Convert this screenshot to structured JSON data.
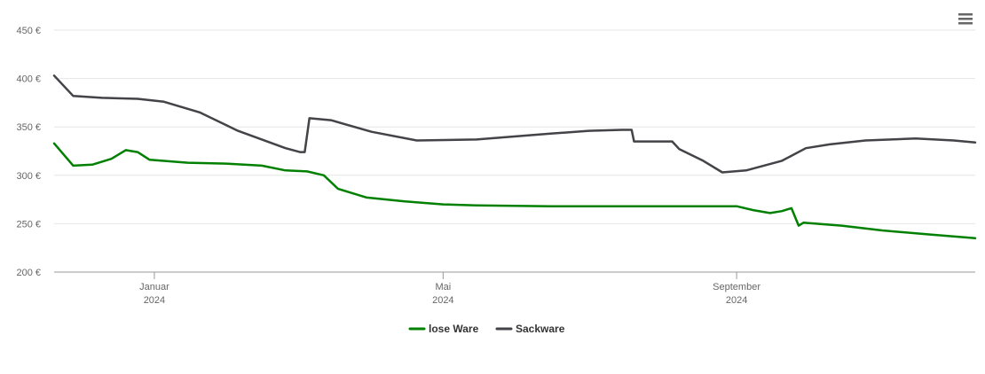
{
  "chart_data": {
    "type": "line",
    "title": "",
    "xlabel": "",
    "ylabel": "",
    "x_range": [
      "2023-11-20",
      "2024-12-10"
    ],
    "ylim": [
      200,
      450
    ],
    "y_ticks": [
      200,
      250,
      300,
      350,
      400,
      450
    ],
    "y_tick_labels": [
      "200 €",
      "250 €",
      "300 €",
      "350 €",
      "400 €",
      "450 €"
    ],
    "x_ticks": [
      {
        "date": "2024-01-01",
        "label": "Januar",
        "year": "2024"
      },
      {
        "date": "2024-05-01",
        "label": "Mai",
        "year": "2024"
      },
      {
        "date": "2024-09-01",
        "label": "September",
        "year": "2024"
      }
    ],
    "grid": true,
    "legend_position": "bottom-center",
    "series": [
      {
        "name": "lose Ware",
        "color": "#008000",
        "points": [
          [
            "2023-11-20",
            333
          ],
          [
            "2023-11-28",
            310
          ],
          [
            "2023-12-06",
            311
          ],
          [
            "2023-12-14",
            317
          ],
          [
            "2023-12-20",
            326
          ],
          [
            "2023-12-25",
            324
          ],
          [
            "2023-12-30",
            316
          ],
          [
            "2024-01-15",
            313
          ],
          [
            "2024-02-01",
            312
          ],
          [
            "2024-02-15",
            310
          ],
          [
            "2024-02-25",
            305
          ],
          [
            "2024-03-05",
            304
          ],
          [
            "2024-03-12",
            300
          ],
          [
            "2024-03-18",
            286
          ],
          [
            "2024-03-30",
            277
          ],
          [
            "2024-04-15",
            273
          ],
          [
            "2024-05-01",
            270
          ],
          [
            "2024-05-15",
            269
          ],
          [
            "2024-06-15",
            268
          ],
          [
            "2024-08-15",
            268
          ],
          [
            "2024-09-01",
            268
          ],
          [
            "2024-09-08",
            264
          ],
          [
            "2024-09-15",
            261
          ],
          [
            "2024-09-20",
            263
          ],
          [
            "2024-09-24",
            266
          ],
          [
            "2024-09-27",
            248
          ],
          [
            "2024-09-29",
            251
          ],
          [
            "2024-10-15",
            248
          ],
          [
            "2024-11-01",
            243
          ],
          [
            "2024-11-20",
            239
          ],
          [
            "2024-12-10",
            235
          ]
        ]
      },
      {
        "name": "Sackware",
        "color": "#434348",
        "points": [
          [
            "2023-11-20",
            403
          ],
          [
            "2023-11-28",
            382
          ],
          [
            "2023-12-10",
            380
          ],
          [
            "2023-12-25",
            379
          ],
          [
            "2024-01-05",
            376
          ],
          [
            "2024-01-20",
            365
          ],
          [
            "2024-02-05",
            346
          ],
          [
            "2024-02-25",
            328
          ],
          [
            "2024-03-02",
            324
          ],
          [
            "2024-03-04",
            324
          ],
          [
            "2024-03-06",
            359
          ],
          [
            "2024-03-15",
            357
          ],
          [
            "2024-04-01",
            345
          ],
          [
            "2024-04-20",
            336
          ],
          [
            "2024-05-15",
            337
          ],
          [
            "2024-06-15",
            343
          ],
          [
            "2024-07-01",
            346
          ],
          [
            "2024-07-15",
            347
          ],
          [
            "2024-07-19",
            347
          ],
          [
            "2024-07-20",
            335
          ],
          [
            "2024-08-05",
            335
          ],
          [
            "2024-08-08",
            327
          ],
          [
            "2024-08-18",
            315
          ],
          [
            "2024-08-26",
            303
          ],
          [
            "2024-09-05",
            305
          ],
          [
            "2024-09-20",
            315
          ],
          [
            "2024-09-30",
            328
          ],
          [
            "2024-10-10",
            332
          ],
          [
            "2024-10-25",
            336
          ],
          [
            "2024-11-15",
            338
          ],
          [
            "2024-12-01",
            336
          ],
          [
            "2024-12-10",
            334
          ]
        ]
      }
    ]
  },
  "menu": {
    "icon": "hamburger-menu-icon"
  }
}
